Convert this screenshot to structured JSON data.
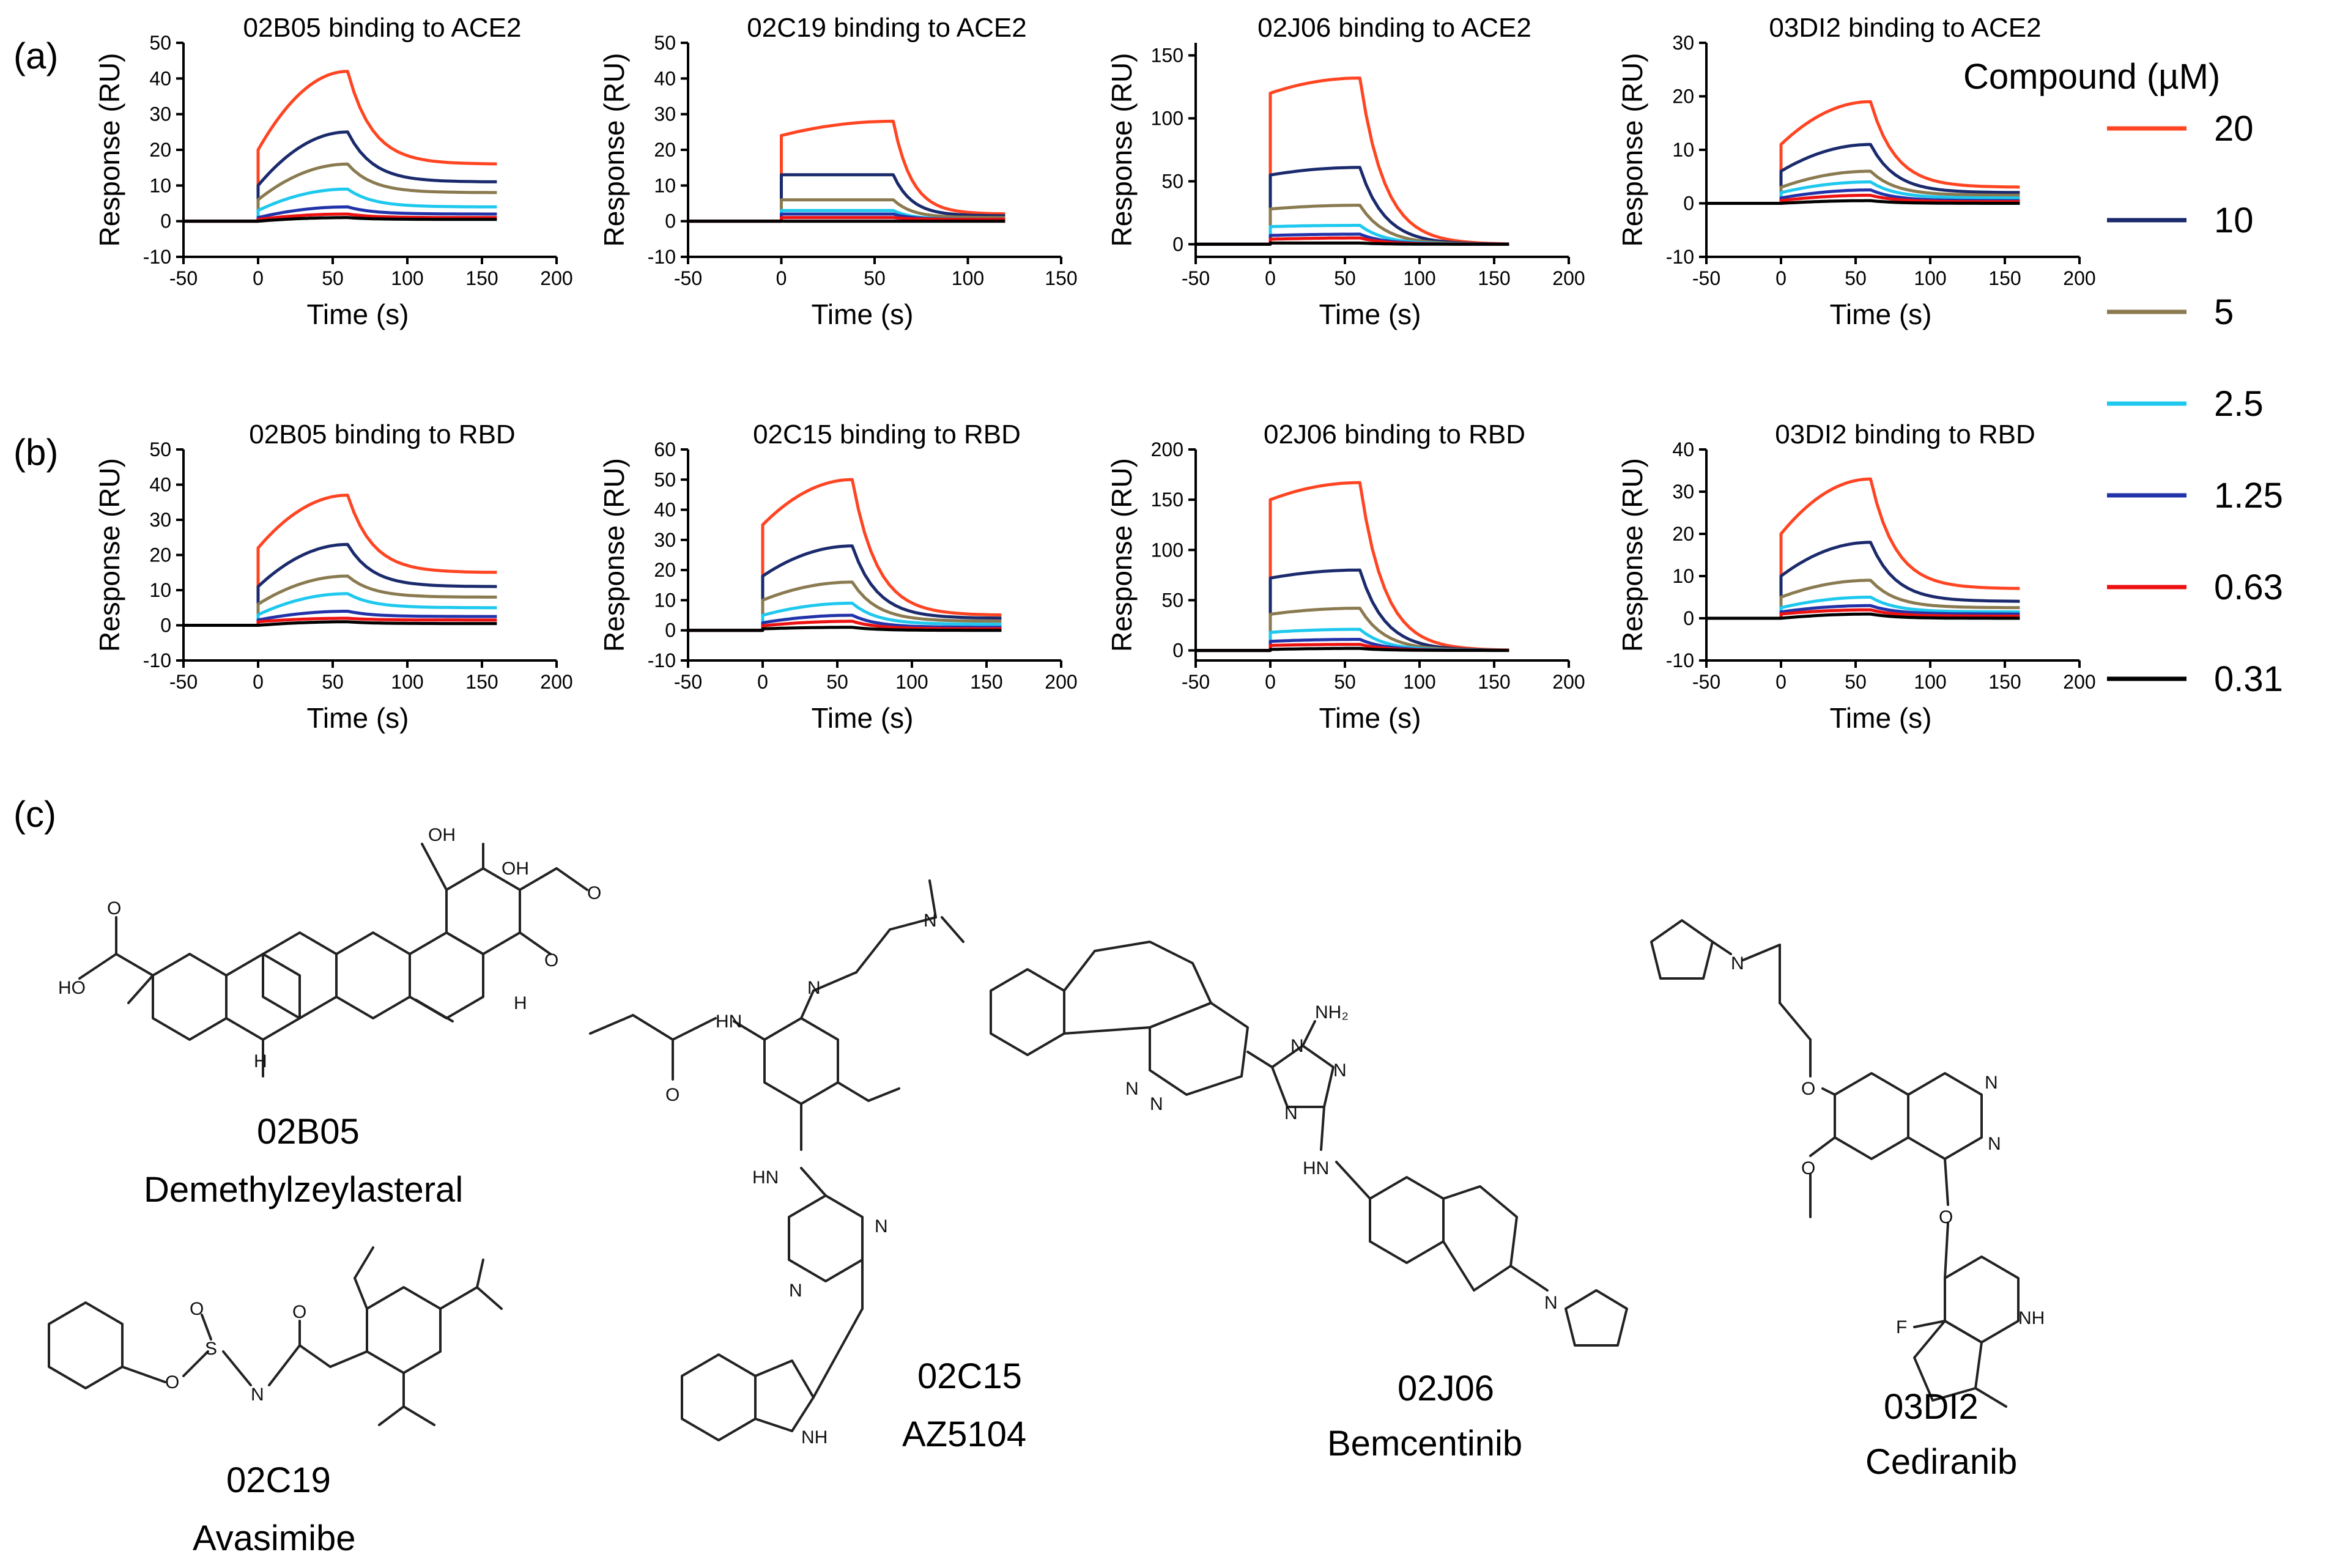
{
  "panel_labels": {
    "a": "(a)",
    "b": "(b)",
    "c": "(c)"
  },
  "legend": {
    "title": "Compound (µM)",
    "entries": [
      {
        "label": "20",
        "color": "#ff4422"
      },
      {
        "label": "10",
        "color": "#1a2a6c"
      },
      {
        "label": "5",
        "color": "#8a7a50"
      },
      {
        "label": "2.5",
        "color": "#1ec8ee"
      },
      {
        "label": "1.25",
        "color": "#2233aa"
      },
      {
        "label": "0.63",
        "color": "#ee1111"
      },
      {
        "label": "0.31",
        "color": "#000000"
      }
    ]
  },
  "chart_data": [
    {
      "type": "line",
      "title": "02B05 binding to ACE2",
      "xlabel": "Time (s)",
      "ylabel": "Response (RU)",
      "xlim": [
        -50,
        200
      ],
      "ylim": [
        -10,
        50
      ],
      "xticks": [
        -50,
        0,
        50,
        100,
        150,
        200
      ],
      "yticks": [
        -10,
        0,
        10,
        20,
        30,
        40,
        50
      ],
      "x": [
        -50,
        0,
        60,
        160
      ],
      "series": [
        {
          "name": "20",
          "values": [
            0,
            20,
            42,
            16
          ]
        },
        {
          "name": "10",
          "values": [
            0,
            10,
            25,
            11
          ]
        },
        {
          "name": "5",
          "values": [
            0,
            6,
            16,
            8
          ]
        },
        {
          "name": "2.5",
          "values": [
            0,
            3,
            9,
            4
          ]
        },
        {
          "name": "1.25",
          "values": [
            0,
            1,
            4,
            2
          ]
        },
        {
          "name": "0.63",
          "values": [
            0,
            0.5,
            2,
            1
          ]
        },
        {
          "name": "0.31",
          "values": [
            0,
            0,
            1,
            0.5
          ]
        }
      ]
    },
    {
      "type": "line",
      "title": "02C19 binding to ACE2",
      "xlabel": "Time (s)",
      "ylabel": "Response (RU)",
      "xlim": [
        -50,
        150
      ],
      "ylim": [
        -10,
        50
      ],
      "xticks": [
        -50,
        0,
        50,
        100,
        150
      ],
      "yticks": [
        -10,
        0,
        10,
        20,
        30,
        40,
        50
      ],
      "x": [
        -50,
        0,
        60,
        120
      ],
      "series": [
        {
          "name": "20",
          "values": [
            0,
            24,
            28,
            2
          ]
        },
        {
          "name": "10",
          "values": [
            0,
            13,
            13,
            1.5
          ]
        },
        {
          "name": "5",
          "values": [
            0,
            6,
            6,
            1
          ]
        },
        {
          "name": "2.5",
          "values": [
            0,
            3,
            3,
            0.5
          ]
        },
        {
          "name": "1.25",
          "values": [
            0,
            2,
            2,
            0.5
          ]
        },
        {
          "name": "0.63",
          "values": [
            0,
            1,
            1,
            0.5
          ]
        },
        {
          "name": "0.31",
          "values": [
            0,
            0,
            0,
            0
          ]
        }
      ]
    },
    {
      "type": "line",
      "title": "02J06 binding to ACE2",
      "xlabel": "Time (s)",
      "ylabel": "Response (RU)",
      "xlim": [
        -50,
        200
      ],
      "ylim": [
        -10,
        160
      ],
      "xticks": [
        -50,
        0,
        50,
        100,
        150,
        200
      ],
      "yticks": [
        0,
        50,
        100,
        150
      ],
      "x": [
        -50,
        0,
        60,
        160
      ],
      "series": [
        {
          "name": "20",
          "values": [
            0,
            120,
            132,
            0
          ]
        },
        {
          "name": "10",
          "values": [
            0,
            55,
            61,
            0
          ]
        },
        {
          "name": "5",
          "values": [
            0,
            28,
            31,
            0
          ]
        },
        {
          "name": "2.5",
          "values": [
            0,
            14,
            15,
            0
          ]
        },
        {
          "name": "1.25",
          "values": [
            0,
            7,
            8,
            0
          ]
        },
        {
          "name": "0.63",
          "values": [
            0,
            4,
            5,
            0
          ]
        },
        {
          "name": "0.31",
          "values": [
            0,
            1,
            1,
            0
          ]
        }
      ]
    },
    {
      "type": "line",
      "title": "03DI2 binding to ACE2",
      "xlabel": "Time (s)",
      "ylabel": "Response (RU)",
      "xlim": [
        -50,
        200
      ],
      "ylim": [
        -10,
        30
      ],
      "xticks": [
        -50,
        0,
        50,
        100,
        150,
        200
      ],
      "yticks": [
        -10,
        0,
        10,
        20,
        30
      ],
      "x": [
        -50,
        0,
        60,
        160
      ],
      "series": [
        {
          "name": "20",
          "values": [
            0,
            11,
            19,
            3
          ]
        },
        {
          "name": "10",
          "values": [
            0,
            6,
            11,
            2
          ]
        },
        {
          "name": "5",
          "values": [
            0,
            3,
            6,
            1.5
          ]
        },
        {
          "name": "2.5",
          "values": [
            0,
            2,
            4,
            1
          ]
        },
        {
          "name": "1.25",
          "values": [
            0,
            1,
            2.5,
            0.5
          ]
        },
        {
          "name": "0.63",
          "values": [
            0,
            0.5,
            1.5,
            0.3
          ]
        },
        {
          "name": "0.31",
          "values": [
            0,
            0,
            0.5,
            0
          ]
        }
      ]
    },
    {
      "type": "line",
      "title": "02B05 binding to RBD",
      "xlabel": "Time (s)",
      "ylabel": "Response (RU)",
      "xlim": [
        -50,
        200
      ],
      "ylim": [
        -10,
        50
      ],
      "xticks": [
        -50,
        0,
        50,
        100,
        150,
        200
      ],
      "yticks": [
        -10,
        0,
        10,
        20,
        30,
        40,
        50
      ],
      "x": [
        -50,
        0,
        60,
        160
      ],
      "series": [
        {
          "name": "20",
          "values": [
            0,
            22,
            37,
            15
          ]
        },
        {
          "name": "10",
          "values": [
            0,
            11,
            23,
            11
          ]
        },
        {
          "name": "5",
          "values": [
            0,
            6,
            14,
            8
          ]
        },
        {
          "name": "2.5",
          "values": [
            0,
            3,
            9,
            5
          ]
        },
        {
          "name": "1.25",
          "values": [
            0,
            1.5,
            4,
            2.5
          ]
        },
        {
          "name": "0.63",
          "values": [
            0,
            1,
            2,
            1.5
          ]
        },
        {
          "name": "0.31",
          "values": [
            0,
            0,
            1,
            0.5
          ]
        }
      ]
    },
    {
      "type": "line",
      "title": "02C15 binding to RBD",
      "xlabel": "Time (s)",
      "ylabel": "Response (RU)",
      "xlim": [
        -50,
        200
      ],
      "ylim": [
        -10,
        60
      ],
      "xticks": [
        -50,
        0,
        50,
        100,
        150,
        200
      ],
      "yticks": [
        -10,
        0,
        10,
        20,
        30,
        40,
        50,
        60
      ],
      "x": [
        -50,
        0,
        60,
        160
      ],
      "series": [
        {
          "name": "20",
          "values": [
            0,
            35,
            50,
            5
          ]
        },
        {
          "name": "10",
          "values": [
            0,
            18,
            28,
            4
          ]
        },
        {
          "name": "5",
          "values": [
            0,
            10,
            16,
            3
          ]
        },
        {
          "name": "2.5",
          "values": [
            0,
            5,
            9,
            2
          ]
        },
        {
          "name": "1.25",
          "values": [
            0,
            2.5,
            5,
            1
          ]
        },
        {
          "name": "0.63",
          "values": [
            0,
            1.5,
            3,
            0.5
          ]
        },
        {
          "name": "0.31",
          "values": [
            0,
            0.5,
            1,
            0
          ]
        }
      ]
    },
    {
      "type": "line",
      "title": "02J06 binding to RBD",
      "xlabel": "Time (s)",
      "ylabel": "Response (RU)",
      "xlim": [
        -50,
        200
      ],
      "ylim": [
        -10,
        200
      ],
      "xticks": [
        -50,
        0,
        50,
        100,
        150,
        200
      ],
      "yticks": [
        0,
        50,
        100,
        150,
        200
      ],
      "x": [
        -50,
        0,
        60,
        160
      ],
      "series": [
        {
          "name": "20",
          "values": [
            0,
            150,
            167,
            0
          ]
        },
        {
          "name": "10",
          "values": [
            0,
            72,
            80,
            0
          ]
        },
        {
          "name": "5",
          "values": [
            0,
            36,
            42,
            0
          ]
        },
        {
          "name": "2.5",
          "values": [
            0,
            18,
            21,
            0
          ]
        },
        {
          "name": "1.25",
          "values": [
            0,
            9,
            11,
            0
          ]
        },
        {
          "name": "0.63",
          "values": [
            0,
            5,
            6,
            0
          ]
        },
        {
          "name": "0.31",
          "values": [
            0,
            1,
            2,
            0
          ]
        }
      ]
    },
    {
      "type": "line",
      "title": "03DI2 binding to RBD",
      "xlabel": "Time (s)",
      "ylabel": "Response (RU)",
      "xlim": [
        -50,
        200
      ],
      "ylim": [
        -10,
        40
      ],
      "xticks": [
        -50,
        0,
        50,
        100,
        150,
        200
      ],
      "yticks": [
        -10,
        0,
        10,
        20,
        30,
        40
      ],
      "x": [
        -50,
        0,
        60,
        160
      ],
      "series": [
        {
          "name": "20",
          "values": [
            0,
            20,
            33,
            7
          ]
        },
        {
          "name": "10",
          "values": [
            0,
            10,
            18,
            4
          ]
        },
        {
          "name": "5",
          "values": [
            0,
            5,
            9,
            2.5
          ]
        },
        {
          "name": "2.5",
          "values": [
            0,
            2.5,
            5,
            1.5
          ]
        },
        {
          "name": "1.25",
          "values": [
            0,
            1.5,
            3,
            1
          ]
        },
        {
          "name": "0.63",
          "values": [
            0,
            1,
            2,
            0.5
          ]
        },
        {
          "name": "0.31",
          "values": [
            0,
            0,
            1,
            0
          ]
        }
      ]
    }
  ],
  "compounds": [
    {
      "code": "02B05",
      "name": "Demethylzeylasteral"
    },
    {
      "code": "02C19",
      "name": "Avasimibe"
    },
    {
      "code": "02C15",
      "name": "AZ5104"
    },
    {
      "code": "02J06",
      "name": "Bemcentinib"
    },
    {
      "code": "03DI2",
      "name": "Cediranib"
    }
  ],
  "atoms": {
    "oh": "OH",
    "ho": "HO",
    "o": "O",
    "n": "N",
    "h": "H",
    "f": "F",
    "nh": "NH",
    "hn": "HN",
    "hn_lower": "N H",
    "nh2": "NH₂",
    "s": "S"
  }
}
